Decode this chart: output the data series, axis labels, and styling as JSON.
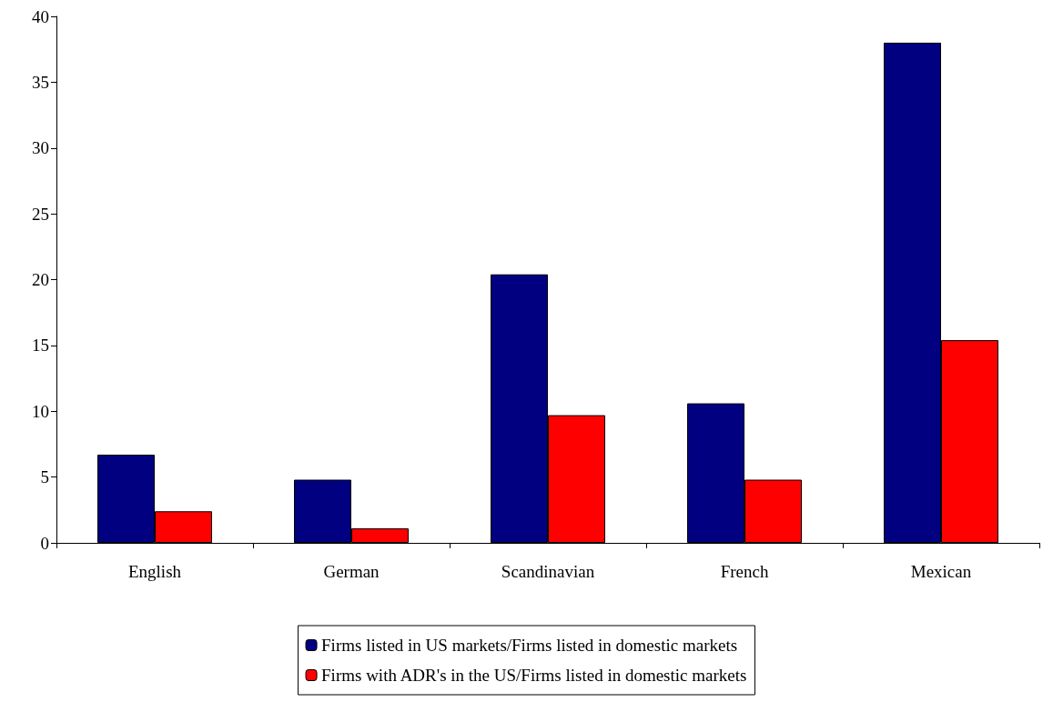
{
  "chart_data": {
    "type": "bar",
    "categories": [
      "English",
      "German",
      "Scandinavian",
      "French",
      "Mexican"
    ],
    "series": [
      {
        "name": "Firms listed in US markets/Firms listed in domestic markets",
        "color": "#000080",
        "values": [
          6.7,
          4.8,
          20.4,
          10.6,
          38.0
        ]
      },
      {
        "name": "Firms with ADR's in the US/Firms listed in domestic markets",
        "color": "#ff0000",
        "values": [
          2.4,
          1.1,
          9.7,
          4.8,
          15.4
        ]
      }
    ],
    "ylim": [
      0,
      40
    ],
    "yticks": [
      0,
      5,
      10,
      15,
      20,
      25,
      30,
      35,
      40
    ],
    "grid": false,
    "legend": "bottom"
  }
}
